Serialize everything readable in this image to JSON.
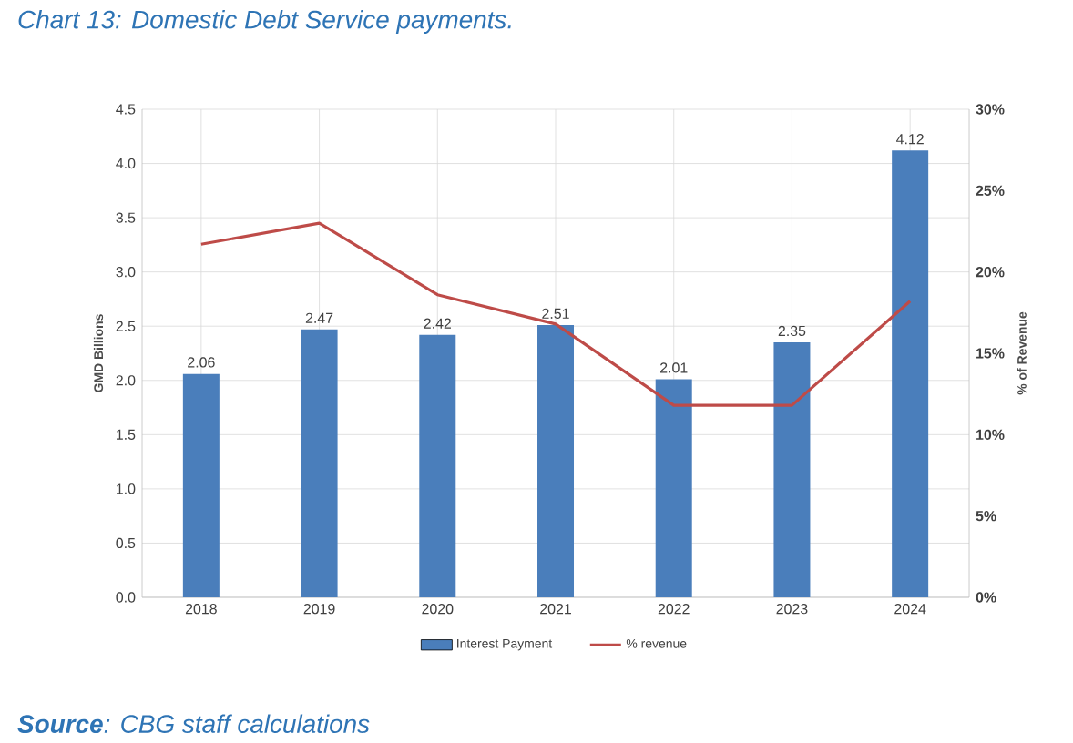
{
  "chart_data": {
    "type": "bar",
    "title": "Chart 13: Domestic Debt Service payments.",
    "categories": [
      "2018",
      "2019",
      "2020",
      "2021",
      "2022",
      "2023",
      "2024"
    ],
    "series": [
      {
        "name": "Interest Payment",
        "color": "#4a7ebb",
        "values": [
          2.06,
          2.47,
          2.42,
          2.51,
          2.01,
          2.35,
          4.12
        ],
        "value_labels": [
          "2.06",
          "2.47",
          "2.42",
          "2.51",
          "2.01",
          "2.35",
          "4.12"
        ]
      },
      {
        "name": "% revenue",
        "type": "line",
        "axis": "y2",
        "color": "#be4b48",
        "values": [
          21.7,
          23.0,
          18.6,
          16.8,
          11.8,
          11.8,
          18.2
        ]
      }
    ],
    "ylabel": "GMD Billions",
    "y2label": "% of Revenue",
    "ylim": [
      0,
      4.5
    ],
    "yticks": [
      {
        "value": 0,
        "label": "0.0"
      },
      {
        "value": 0.5,
        "label": "0.5"
      },
      {
        "value": 1,
        "label": "1.0"
      },
      {
        "value": 1.5,
        "label": "1.5"
      },
      {
        "value": 2,
        "label": "2.0"
      },
      {
        "value": 2.5,
        "label": "2.5"
      },
      {
        "value": 3,
        "label": "3.0"
      },
      {
        "value": 3.5,
        "label": "3.5"
      },
      {
        "value": 4,
        "label": "4.0"
      },
      {
        "value": 4.5,
        "label": "4.5"
      }
    ],
    "y2lim": [
      0,
      30
    ],
    "y2ticks": [
      {
        "value": 0,
        "label": "0%"
      },
      {
        "value": 5,
        "label": "5%"
      },
      {
        "value": 10,
        "label": "10%"
      },
      {
        "value": 15,
        "label": "15%"
      },
      {
        "value": 20,
        "label": "20%"
      },
      {
        "value": 25,
        "label": "25%"
      },
      {
        "value": 30,
        "label": "30%"
      }
    ],
    "grid": true,
    "legend": "bottom",
    "annotations": [
      "**Source**: CBG staff calculations"
    ]
  }
}
